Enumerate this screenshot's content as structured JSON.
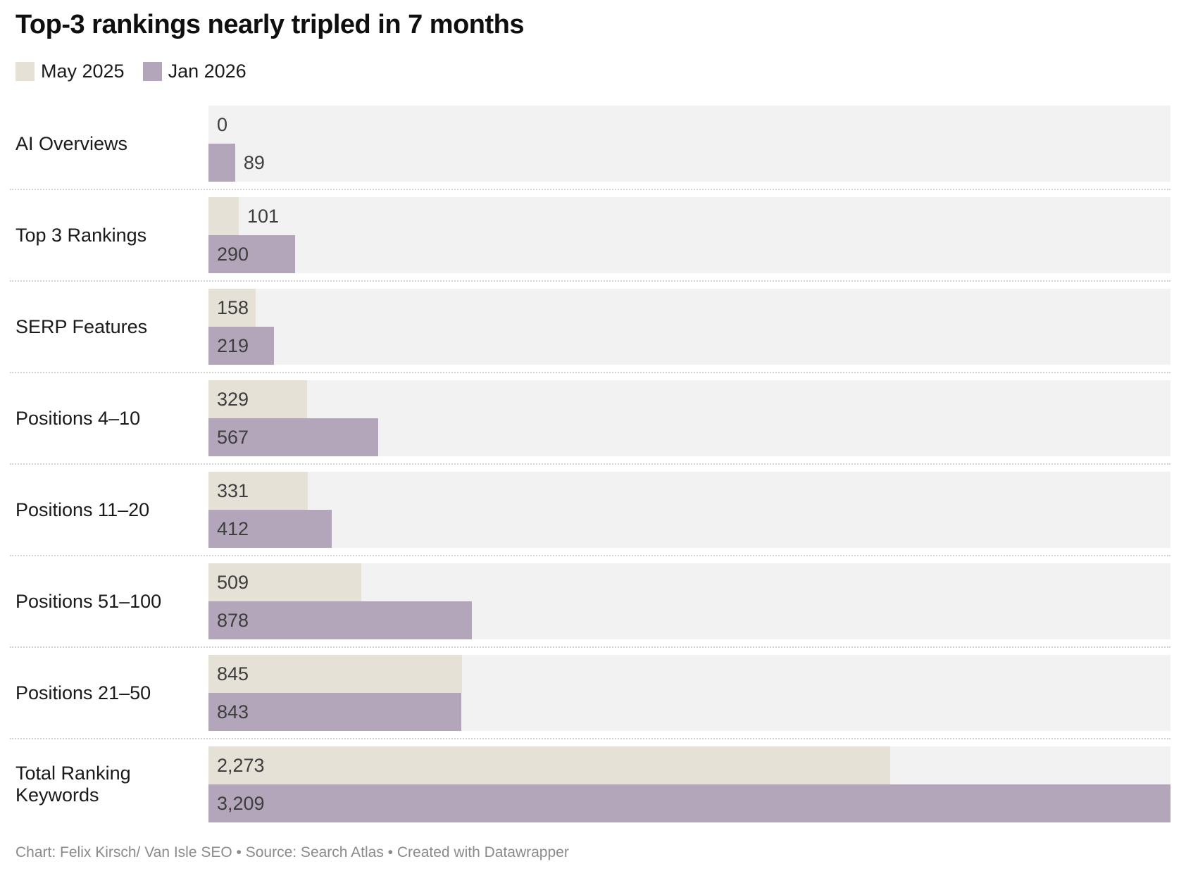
{
  "header": {
    "title": "Top-3 rankings nearly tripled in 7 months"
  },
  "legend": [
    {
      "label": "May 2025",
      "color": "#e5e1d6"
    },
    {
      "label": "Jan 2026",
      "color": "#b3a6ba"
    }
  ],
  "footer": {
    "text": "Chart: Felix Kirsch/ Van Isle SEO • Source: Search Atlas • Created with Datawrapper"
  },
  "colors": {
    "row_background": "#f2f2f2",
    "may_2025": "#e5e1d6",
    "jan_2026": "#b3a6ba",
    "category_label": "#1a1a1a",
    "value_label": "#3e3e3e",
    "separator": "#d2d2d2",
    "footer_text": "#8a8a8a",
    "title_text": "#0f0f0f"
  },
  "chart_data": {
    "type": "bar",
    "orientation": "horizontal",
    "title": "Top-3 rankings nearly tripled in 7 months",
    "xlabel": "",
    "ylabel": "",
    "xlim": [
      0,
      3209
    ],
    "grid": false,
    "legend_position": "top",
    "categories": [
      "AI Overviews",
      "Top 3 Rankings",
      "SERP Features",
      "Positions 4–10",
      "Positions 11–20",
      "Positions 51–100",
      "Positions 21–50",
      "Total Ranking Keywords"
    ],
    "series": [
      {
        "name": "May 2025",
        "color": "#e5e1d6",
        "values": [
          0,
          101,
          158,
          329,
          331,
          509,
          845,
          2273
        ],
        "labels": [
          "0",
          "101",
          "158",
          "329",
          "331",
          "509",
          "845",
          "2,273"
        ]
      },
      {
        "name": "Jan 2026",
        "color": "#b3a6ba",
        "values": [
          89,
          290,
          219,
          567,
          412,
          878,
          843,
          3209
        ],
        "labels": [
          "89",
          "290",
          "219",
          "567",
          "412",
          "878",
          "843",
          "3,209"
        ]
      }
    ]
  }
}
